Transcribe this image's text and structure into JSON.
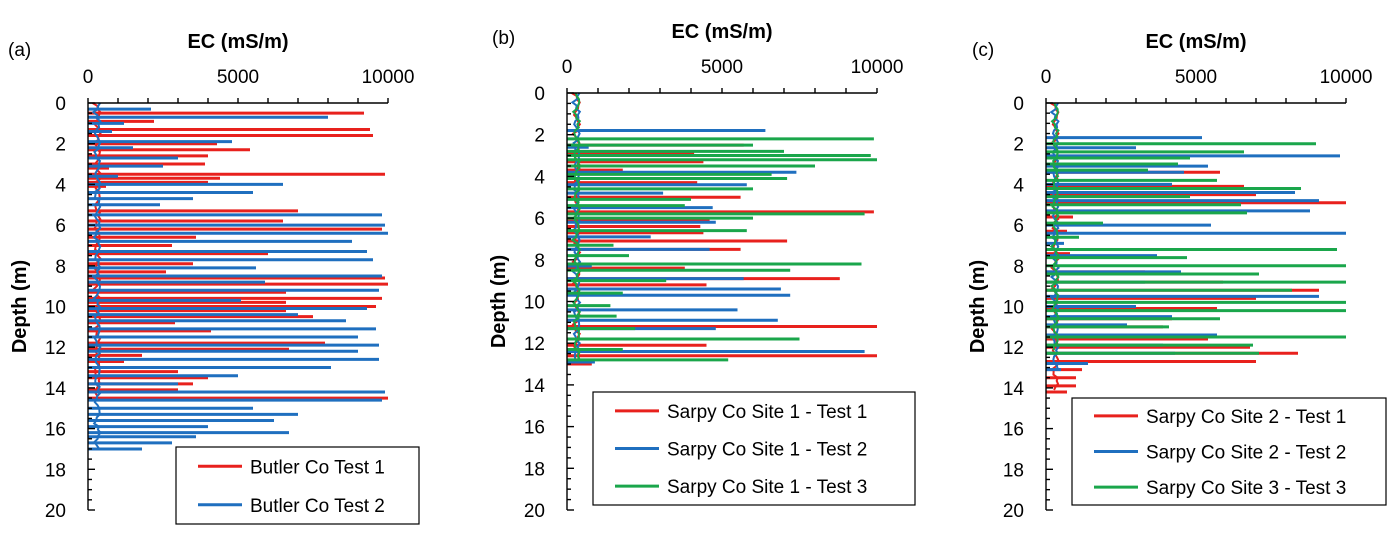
{
  "chart_data": [
    {
      "type": "line",
      "panel": "(a)",
      "xlabel": "EC (mS/m)",
      "ylabel": "Depth (m)",
      "xlim": [
        0,
        10000
      ],
      "ylim": [
        0,
        20
      ],
      "x_ticks": [
        "0",
        "5000",
        "10000"
      ],
      "y_ticks": [
        "0",
        "2",
        "4",
        "6",
        "8",
        "10",
        "12",
        "14",
        "16",
        "18",
        "20"
      ],
      "grid": false,
      "legend_position": "bottom-right",
      "colors": [
        "#e8211d",
        "#1f6fbf"
      ],
      "series": [
        {
          "name": "Butler Co Test 1",
          "color": "#e8211d",
          "depth": [
            0.5,
            0.9,
            1.3,
            1.6,
            2.0,
            2.3,
            2.6,
            3.0,
            3.2,
            3.5,
            3.7,
            3.9,
            4.1,
            5.3,
            5.8,
            6.2,
            6.6,
            7.0,
            7.4,
            7.9,
            8.3,
            8.6,
            8.9,
            9.3,
            9.6,
            9.8,
            10.0,
            10.2,
            10.5,
            10.8,
            11.2,
            11.5,
            11.8,
            12.1,
            12.4,
            12.7,
            13.0,
            13.2,
            13.5,
            13.8,
            14.1,
            14.5
          ],
          "ec": [
            9200,
            2200,
            9400,
            9500,
            4300,
            5400,
            4000,
            3900,
            700,
            9900,
            4400,
            4000,
            600,
            7000,
            6500,
            9800,
            3600,
            2800,
            6000,
            3500,
            2600,
            9900,
            10000,
            6600,
            9800,
            6600,
            9600,
            6600,
            7500,
            2900,
            4100,
            4000,
            7900,
            6700,
            1800,
            1200,
            900,
            3000,
            4000,
            3500,
            3000,
            10000
          ]
        },
        {
          "name": "Butler Co Test 2",
          "color": "#1f6fbf",
          "depth": [
            0.3,
            0.7,
            1.0,
            1.4,
            1.9,
            2.2,
            2.7,
            3.1,
            3.6,
            4.0,
            4.4,
            4.7,
            5.0,
            5.5,
            6.0,
            6.4,
            6.8,
            7.3,
            7.7,
            8.1,
            8.5,
            8.8,
            9.2,
            9.7,
            10.1,
            10.4,
            10.7,
            11.1,
            11.5,
            11.9,
            12.2,
            12.6,
            13.0,
            13.4,
            13.8,
            14.2,
            14.6,
            15.0,
            15.3,
            15.6,
            15.9,
            16.2,
            16.4,
            16.7,
            17.0
          ],
          "ec": [
            2100,
            8000,
            1200,
            800,
            4800,
            1500,
            3000,
            2500,
            1000,
            6500,
            5500,
            3500,
            2400,
            9800,
            9900,
            10000,
            8800,
            9300,
            9500,
            5600,
            9800,
            5900,
            9700,
            5100,
            9300,
            7000,
            8600,
            9600,
            9000,
            9700,
            9000,
            9700,
            8100,
            5000,
            3000,
            9900,
            9800,
            5500,
            7000,
            6200,
            4000,
            6700,
            3600,
            2800,
            1800
          ]
        }
      ]
    },
    {
      "type": "line",
      "panel": "(b)",
      "xlabel": "EC (mS/m)",
      "ylabel": "Depth (m)",
      "xlim": [
        0,
        10000
      ],
      "ylim": [
        0,
        20
      ],
      "x_ticks": [
        "0",
        "5000",
        "10000"
      ],
      "y_ticks": [
        "0",
        "2",
        "4",
        "6",
        "8",
        "10",
        "12",
        "14",
        "16",
        "18",
        "20"
      ],
      "grid": false,
      "legend_position": "bottom-right",
      "colors": [
        "#e8211d",
        "#1f6fbf",
        "#1aa64b"
      ],
      "series": [
        {
          "name": "Sarpy Co Site 1 - Test 1",
          "color": "#e8211d",
          "depth": [
            2.5,
            2.9,
            3.3,
            3.7,
            4.3,
            5.0,
            5.7,
            6.1,
            6.4,
            6.7,
            7.1,
            7.5,
            8.4,
            8.9,
            9.2,
            11.2,
            12.1,
            12.6,
            13.0
          ],
          "ec": [
            5700,
            4100,
            4400,
            1800,
            4200,
            5600,
            9900,
            4600,
            4300,
            4400,
            7100,
            5600,
            3800,
            8800,
            4500,
            10000,
            4500,
            10000,
            800
          ]
        },
        {
          "name": "Sarpy Co Site 1 - Test 2",
          "color": "#1f6fbf",
          "depth": [
            1.8,
            2.6,
            3.0,
            3.8,
            4.4,
            4.8,
            5.5,
            6.2,
            6.9,
            7.5,
            8.3,
            8.9,
            9.4,
            9.7,
            10.4,
            10.9,
            11.3,
            11.8,
            12.4,
            12.9
          ],
          "ec": [
            6400,
            700,
            6000,
            7400,
            5800,
            3100,
            4700,
            4800,
            2700,
            4600,
            800,
            5700,
            6900,
            7200,
            5500,
            6800,
            4800,
            3500,
            9600,
            900
          ]
        },
        {
          "name": "Sarpy Co Site 1 - Test 3",
          "color": "#1aa64b",
          "depth": [
            2.2,
            2.5,
            2.8,
            3.0,
            3.2,
            3.5,
            3.9,
            4.1,
            4.6,
            5.1,
            5.4,
            5.8,
            6.0,
            6.6,
            7.3,
            7.8,
            8.2,
            8.5,
            9.0,
            9.6,
            10.2,
            10.7,
            11.3,
            11.8,
            12.3,
            12.8
          ],
          "ec": [
            9900,
            6000,
            7000,
            9800,
            10000,
            8000,
            6600,
            7100,
            6000,
            4000,
            3800,
            9600,
            6000,
            5800,
            1500,
            2000,
            9500,
            7200,
            3200,
            1800,
            1400,
            1600,
            2200,
            7500,
            1800,
            5200
          ]
        }
      ]
    },
    {
      "type": "line",
      "panel": "(c)",
      "xlabel": "EC (mS/m)",
      "ylabel": "Depth (m)",
      "xlim": [
        0,
        10000
      ],
      "ylim": [
        0,
        20
      ],
      "x_ticks": [
        "0",
        "5000",
        "10000"
      ],
      "y_ticks": [
        "0",
        "2",
        "4",
        "6",
        "8",
        "10",
        "12",
        "14",
        "16",
        "18",
        "20"
      ],
      "grid": false,
      "legend_position": "bottom-right",
      "colors": [
        "#e8211d",
        "#1f6fbf",
        "#1aa64b"
      ],
      "series": [
        {
          "name": "Sarpy Co Site 2 - Test 1",
          "color": "#e8211d",
          "depth": [
            3.4,
            4.1,
            4.5,
            4.9,
            5.6,
            6.3,
            7.4,
            8.3,
            8.8,
            9.2,
            9.6,
            10.1,
            10.6,
            11.0,
            11.6,
            12.0,
            12.3,
            12.7,
            13.1,
            13.5,
            13.9,
            14.2
          ],
          "ec": [
            5800,
            6600,
            7000,
            10000,
            900,
            700,
            800,
            3300,
            5900,
            9100,
            7000,
            5700,
            4200,
            3900,
            5400,
            6800,
            8400,
            7000,
            1200,
            1000,
            1000,
            700
          ]
        },
        {
          "name": "Sarpy Co Site 2 - Test 2",
          "color": "#1f6fbf",
          "depth": [
            1.7,
            2.2,
            2.6,
            3.1,
            3.4,
            4.0,
            4.4,
            4.8,
            5.3,
            6.0,
            6.4,
            6.9,
            7.5,
            8.3,
            8.8,
            9.5,
            10.0,
            10.5,
            10.9,
            11.4,
            11.9,
            12.3,
            12.8,
            13.1
          ],
          "ec": [
            5200,
            3000,
            9800,
            5400,
            4600,
            4200,
            8300,
            9100,
            8800,
            5500,
            10000,
            600,
            3700,
            4500,
            3300,
            9100,
            3000,
            4200,
            2700,
            5700,
            3900,
            4300,
            1400,
            500
          ]
        },
        {
          "name": "Sarpy Co Site 3 - Test 3",
          "color": "#1aa64b",
          "depth": [
            2.0,
            2.4,
            2.7,
            3.0,
            3.3,
            3.8,
            4.2,
            4.6,
            5.0,
            5.4,
            5.9,
            6.6,
            7.2,
            7.6,
            8.0,
            8.4,
            8.8,
            9.2,
            9.8,
            10.2,
            10.6,
            11.0,
            11.5,
            11.9,
            12.3
          ],
          "ec": [
            9000,
            6600,
            4800,
            4400,
            3400,
            5700,
            8500,
            4800,
            6500,
            6700,
            1900,
            1100,
            9700,
            4700,
            10000,
            7100,
            10000,
            8200,
            10000,
            10000,
            5800,
            4100,
            10000,
            6900,
            7100
          ]
        }
      ]
    }
  ]
}
